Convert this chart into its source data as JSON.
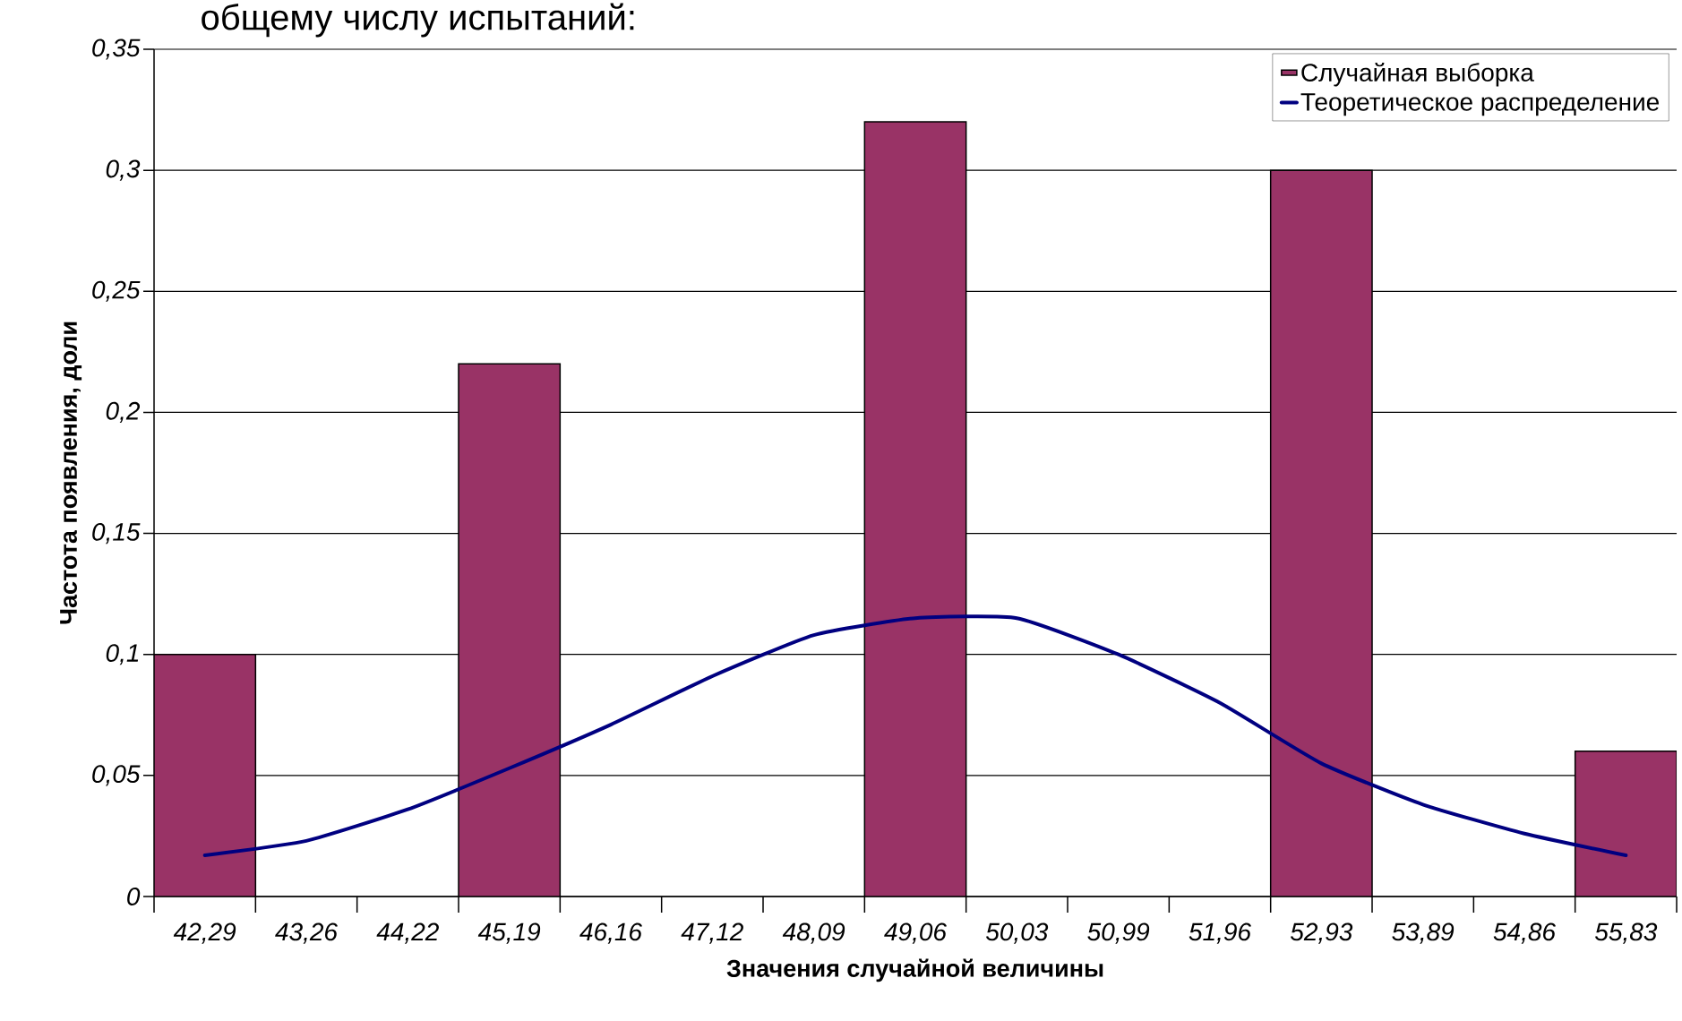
{
  "chart_data": {
    "type": "bar",
    "title": "общему числу испытаний:",
    "xlabel": "Значения случайной величины",
    "ylabel": "Частота появления, доли",
    "categories": [
      "42,29",
      "43,26",
      "44,22",
      "45,19",
      "46,16",
      "47,12",
      "48,09",
      "49,06",
      "50,03",
      "50,99",
      "51,96",
      "52,93",
      "53,89",
      "54,86",
      "55,83"
    ],
    "series": [
      {
        "name": "Случайная выборка",
        "color": "#993366",
        "values": [
          0.1,
          null,
          null,
          0.22,
          null,
          null,
          null,
          0.32,
          null,
          null,
          null,
          0.3,
          null,
          null,
          0.06
        ]
      },
      {
        "name": "Теоретическое распределение",
        "type": "line",
        "color": "#000080",
        "values": [
          0.017,
          0.023,
          0.036,
          0.053,
          0.071,
          0.091,
          0.108,
          0.115,
          0.115,
          0.1,
          0.08,
          0.055,
          0.038,
          0.026,
          0.017
        ]
      }
    ],
    "ylim": [
      0,
      0.35
    ],
    "yticks": [
      {
        "value": 0,
        "label": "0"
      },
      {
        "value": 0.05,
        "label": "0,05"
      },
      {
        "value": 0.1,
        "label": "0,1"
      },
      {
        "value": 0.15,
        "label": "0,15"
      },
      {
        "value": 0.2,
        "label": "0,2"
      },
      {
        "value": 0.25,
        "label": "0,25"
      },
      {
        "value": 0.3,
        "label": "0,3"
      },
      {
        "value": 0.35,
        "label": "0,35"
      }
    ],
    "grid": "y",
    "legend": "top right",
    "line_style": "solid",
    "marker": "none"
  }
}
